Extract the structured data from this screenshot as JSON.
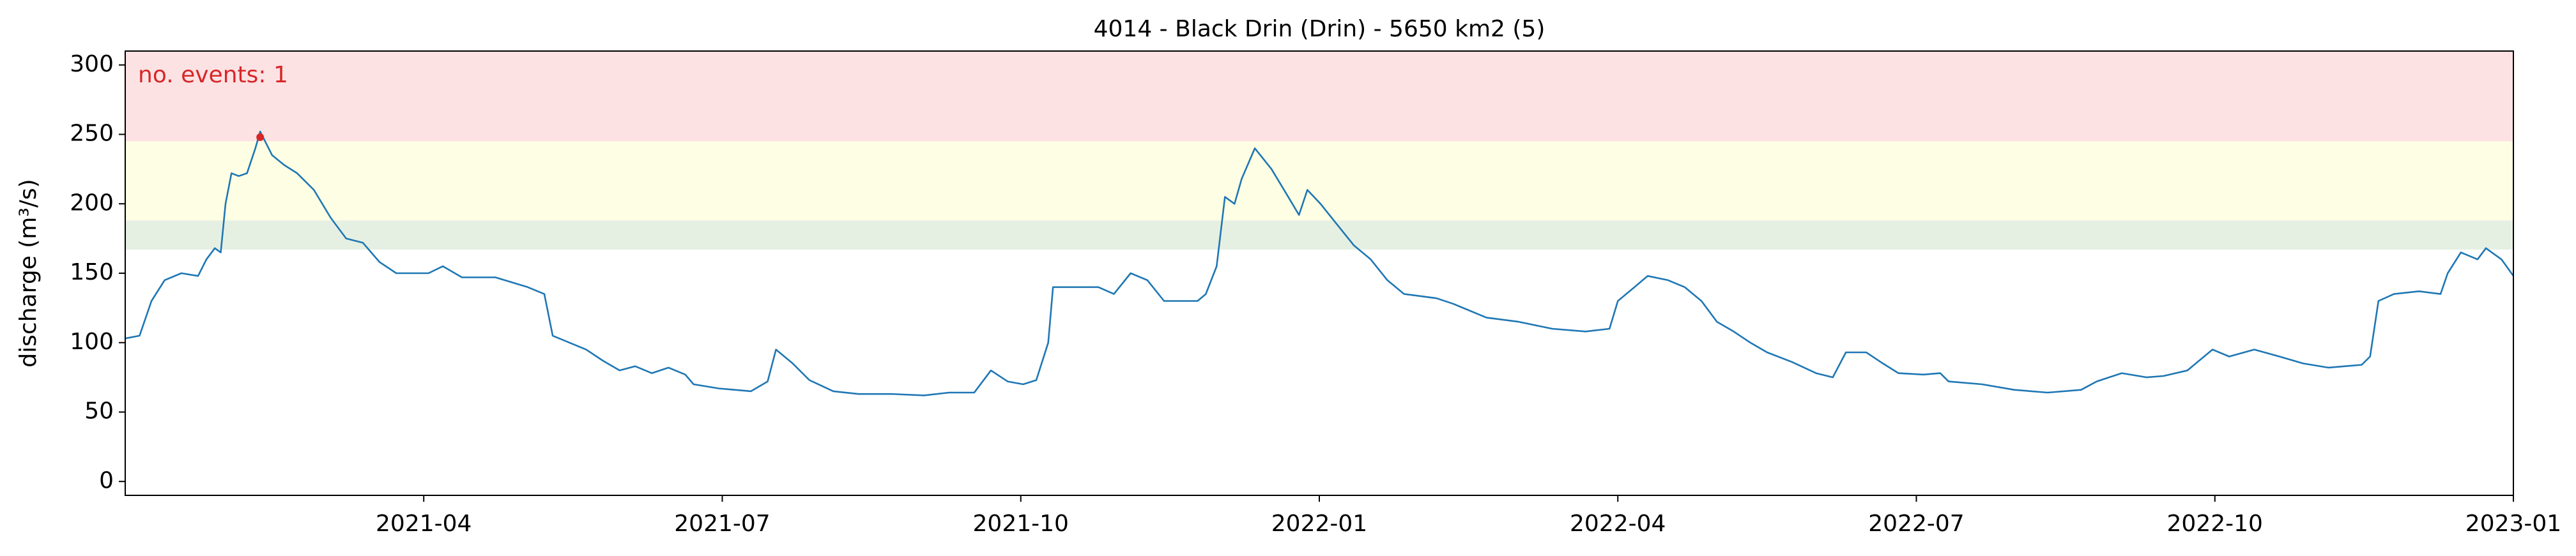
{
  "chart_data": {
    "type": "line",
    "title": "4014 - Black Drin (Drin) - 5650 km2 (5)",
    "ylabel": "discharge (m³/s)",
    "annotation": "no. events: 1",
    "xlim": [
      2021.0,
      2023.0
    ],
    "xticks": [
      {
        "value": 2021.25,
        "label": "2021-04"
      },
      {
        "value": 2021.5,
        "label": "2021-07"
      },
      {
        "value": 2021.75,
        "label": "2021-10"
      },
      {
        "value": 2022.0,
        "label": "2022-01"
      },
      {
        "value": 2022.25,
        "label": "2022-04"
      },
      {
        "value": 2022.5,
        "label": "2022-07"
      },
      {
        "value": 2022.75,
        "label": "2022-10"
      },
      {
        "value": 2023.0,
        "label": "2023-01"
      }
    ],
    "ylim": [
      -10,
      310
    ],
    "yticks": [
      0,
      50,
      100,
      150,
      200,
      250,
      300
    ],
    "bands": [
      {
        "from": 167,
        "to": 188,
        "color": "#e5f0e3"
      },
      {
        "from": 188,
        "to": 245,
        "color": "#fefee4"
      },
      {
        "from": 245,
        "to": 310,
        "color": "#fde2e4"
      }
    ],
    "series": [
      {
        "color": "#1f77b4",
        "x": [
          2021.0,
          2021.012,
          2021.022,
          2021.033,
          2021.047,
          2021.061,
          2021.068,
          2021.075,
          2021.08,
          2021.084,
          2021.089,
          2021.095,
          2021.102,
          2021.109,
          2021.113,
          2021.123,
          2021.133,
          2021.144,
          2021.158,
          2021.172,
          2021.185,
          2021.199,
          2021.213,
          2021.227,
          2021.241,
          2021.254,
          2021.266,
          2021.282,
          2021.31,
          2021.337,
          2021.351,
          2021.358,
          2021.372,
          2021.386,
          2021.4,
          2021.414,
          2021.427,
          2021.441,
          2021.455,
          2021.469,
          2021.476,
          2021.497,
          2021.524,
          2021.538,
          2021.545,
          2021.559,
          2021.573,
          2021.593,
          2021.614,
          2021.642,
          2021.669,
          2021.69,
          2021.711,
          2021.725,
          2021.739,
          2021.752,
          2021.763,
          2021.773,
          2021.777,
          2021.794,
          2021.815,
          2021.828,
          2021.842,
          2021.856,
          2021.87,
          2021.898,
          2021.905,
          2021.914,
          2021.921,
          2021.929,
          2021.935,
          2021.946,
          2021.96,
          2021.974,
          2021.983,
          2021.99,
          2022.001,
          2022.015,
          2022.029,
          2022.043,
          2022.057,
          2022.071,
          2022.098,
          2022.112,
          2022.14,
          2022.167,
          2022.195,
          2022.223,
          2022.243,
          2022.25,
          2022.264,
          2022.275,
          2022.292,
          2022.306,
          2022.32,
          2022.333,
          2022.347,
          2022.361,
          2022.375,
          2022.396,
          2022.416,
          2022.43,
          2022.441,
          2022.458,
          2022.472,
          2022.485,
          2022.506,
          2022.52,
          2022.527,
          2022.555,
          2022.582,
          2022.61,
          2022.638,
          2022.651,
          2022.672,
          2022.693,
          2022.707,
          2022.727,
          2022.748,
          2022.762,
          2022.783,
          2022.804,
          2022.824,
          2022.845,
          2022.873,
          2022.88,
          2022.887,
          2022.9,
          2022.921,
          2022.939,
          2022.945,
          2022.956,
          2022.97,
          2022.977,
          2022.99,
          2023.0
        ],
        "values": [
          103,
          105,
          130,
          145,
          150,
          148,
          160,
          168,
          165,
          200,
          222,
          220,
          222,
          240,
          252,
          235,
          228,
          222,
          210,
          190,
          175,
          172,
          158,
          150,
          150,
          150,
          155,
          147,
          147,
          140,
          135,
          105,
          100,
          95,
          87,
          80,
          83,
          78,
          82,
          77,
          70,
          67,
          65,
          72,
          95,
          85,
          73,
          65,
          63,
          63,
          62,
          64,
          64,
          80,
          72,
          70,
          73,
          100,
          140,
          140,
          140,
          135,
          150,
          145,
          130,
          130,
          135,
          155,
          205,
          200,
          218,
          240,
          225,
          205,
          192,
          210,
          200,
          185,
          170,
          160,
          145,
          135,
          132,
          128,
          118,
          115,
          110,
          108,
          110,
          130,
          140,
          148,
          145,
          140,
          130,
          115,
          108,
          100,
          93,
          86,
          78,
          75,
          93,
          93,
          85,
          78,
          77,
          78,
          72,
          70,
          66,
          64,
          66,
          72,
          78,
          75,
          76,
          80,
          95,
          90,
          95,
          90,
          85,
          82,
          84,
          90,
          130,
          135,
          137,
          135,
          150,
          165,
          160,
          168,
          160,
          148
        ]
      }
    ],
    "events": {
      "color": "#d62728",
      "x": [
        2021.113
      ],
      "values": [
        248
      ]
    }
  }
}
